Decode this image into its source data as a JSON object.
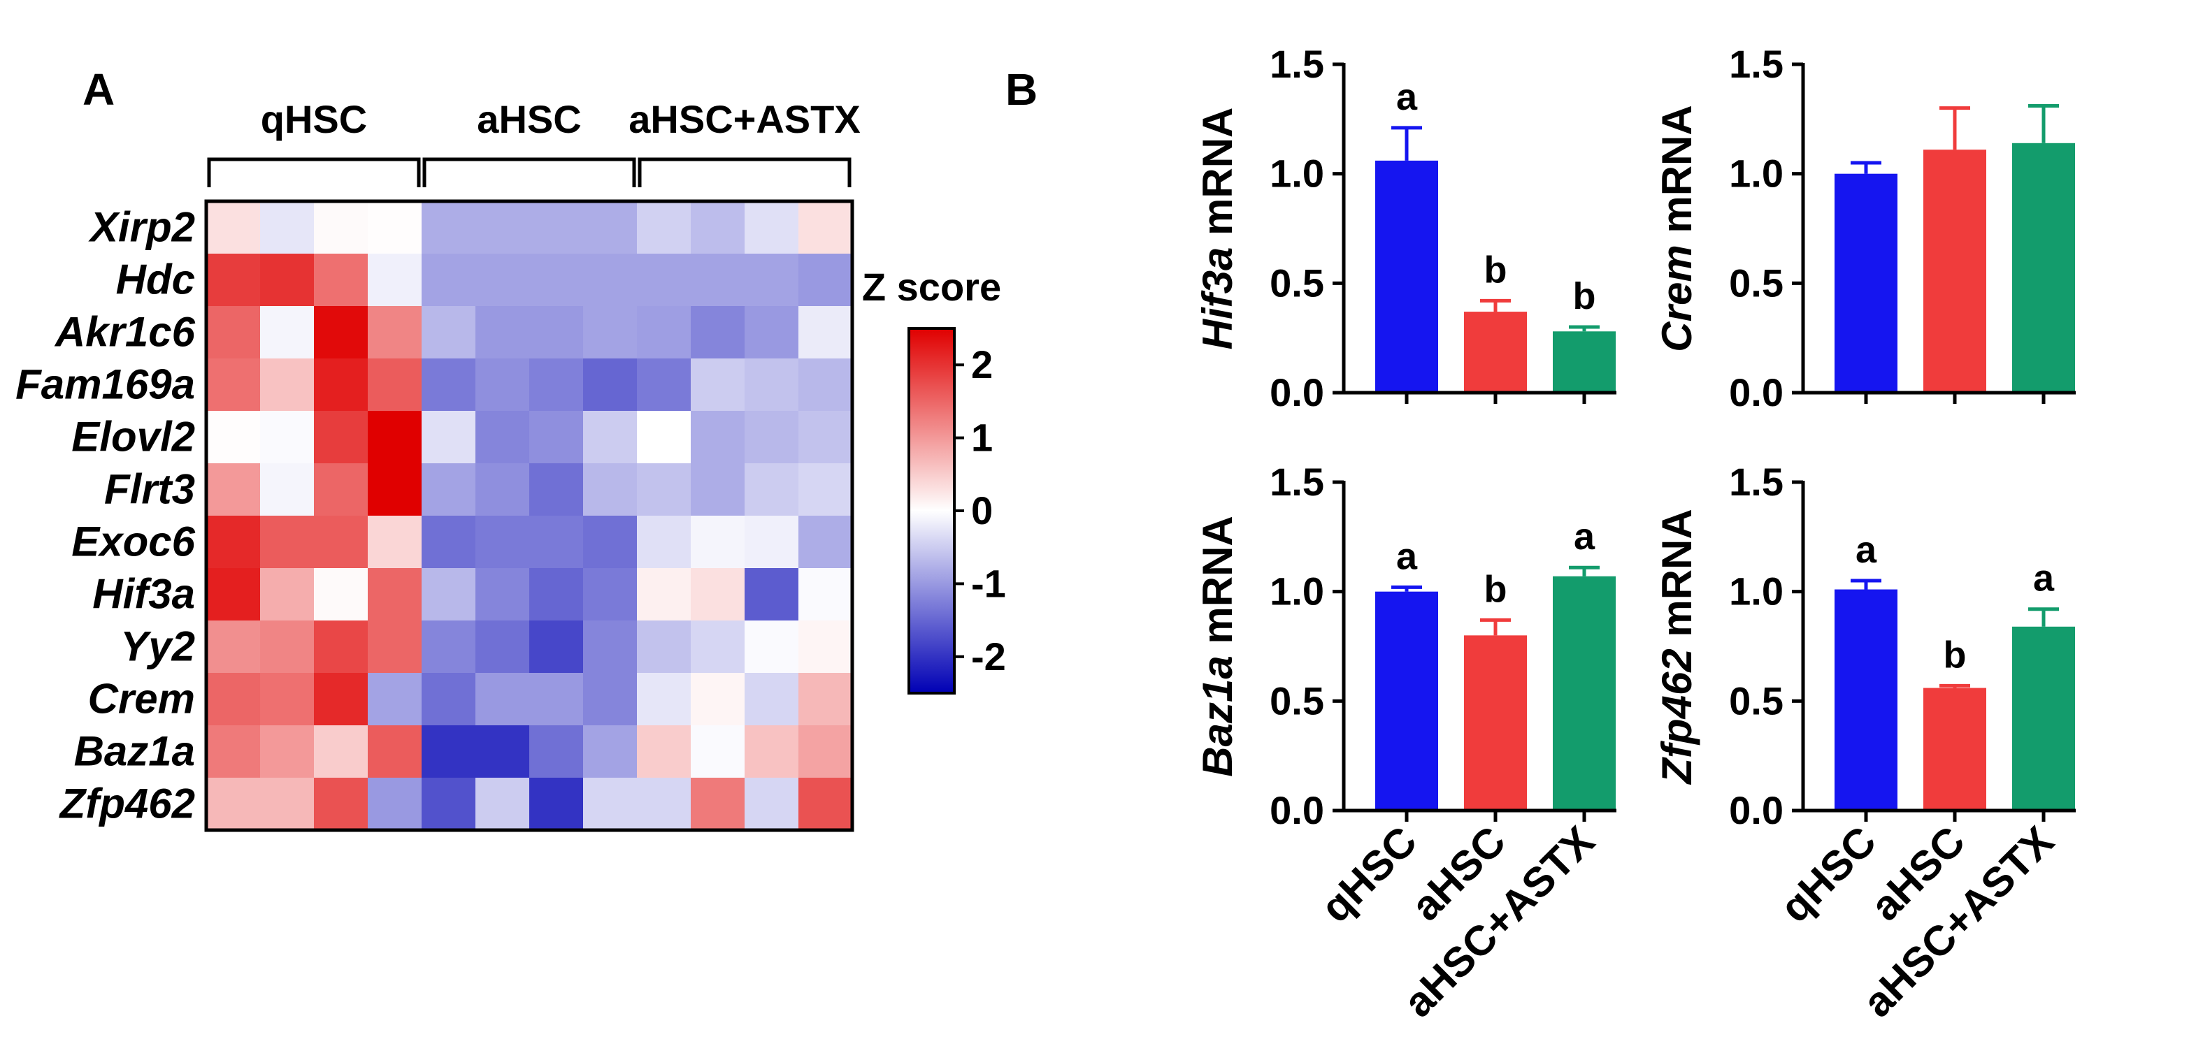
{
  "panels": {
    "a": "A",
    "b": "B"
  },
  "heatmap": {
    "groups": [
      "qHSC",
      "aHSC",
      "aHSC+ASTX"
    ],
    "genes": [
      "Xirp2",
      "Hdc",
      "Akr1c6",
      "Fam169a",
      "Elovl2",
      "Flrt3",
      "Exoc6",
      "Hif3a",
      "Yy2",
      "Crem",
      "Baz1a",
      "Zfp462"
    ],
    "z": [
      [
        0.3,
        -0.25,
        0.05,
        0.02,
        -0.8,
        -0.8,
        -0.8,
        -0.8,
        -0.45,
        -0.65,
        -0.3,
        0.3
      ],
      [
        1.9,
        2.0,
        1.4,
        -0.15,
        -0.9,
        -0.9,
        -0.9,
        -0.9,
        -0.9,
        -0.9,
        -0.9,
        -1.0
      ],
      [
        1.5,
        -0.1,
        2.4,
        1.2,
        -0.7,
        -1.0,
        -1.0,
        -0.9,
        -0.95,
        -1.2,
        -1.0,
        -0.2
      ],
      [
        1.4,
        0.6,
        2.2,
        1.6,
        -1.3,
        -1.1,
        -1.25,
        -1.5,
        -1.3,
        -0.5,
        -0.6,
        -0.7
      ],
      [
        0.02,
        -0.05,
        1.9,
        2.5,
        -0.3,
        -1.2,
        -1.1,
        -0.5,
        0.0,
        -0.8,
        -0.7,
        -0.6
      ],
      [
        1.0,
        -0.1,
        1.5,
        2.5,
        -0.9,
        -1.1,
        -1.4,
        -0.7,
        -0.6,
        -0.8,
        -0.5,
        -0.4
      ],
      [
        2.1,
        1.6,
        1.6,
        0.4,
        -1.4,
        -1.3,
        -1.3,
        -1.4,
        -0.3,
        -0.1,
        -0.15,
        -0.8
      ],
      [
        2.2,
        0.8,
        0.05,
        1.5,
        -0.7,
        -1.2,
        -1.5,
        -1.3,
        0.15,
        0.3,
        -1.6,
        -0.05
      ],
      [
        1.1,
        1.2,
        1.8,
        1.5,
        -1.2,
        -1.4,
        -1.8,
        -1.2,
        -0.6,
        -0.4,
        -0.05,
        0.1
      ],
      [
        1.5,
        1.4,
        2.1,
        -0.9,
        -1.4,
        -1.0,
        -1.0,
        -1.2,
        -0.25,
        0.1,
        -0.4,
        0.7
      ],
      [
        1.3,
        1.0,
        0.5,
        1.6,
        -2.0,
        -2.0,
        -1.4,
        -0.9,
        0.5,
        -0.05,
        0.6,
        0.9
      ],
      [
        0.7,
        0.7,
        1.7,
        -1.0,
        -1.7,
        -0.5,
        -2.0,
        -0.4,
        -0.4,
        1.3,
        -0.4,
        1.7
      ]
    ],
    "colorbar": {
      "title": "Z score",
      "ticks": [
        "2",
        "1",
        "0",
        "-1",
        "-2"
      ],
      "min": -2.5,
      "max": 2.5
    },
    "colors": {
      "high": "#e00000",
      "mid": "#ffffff",
      "low": "#0000b4"
    }
  },
  "chart_data": [
    {
      "type": "bar",
      "gene": "Hif3a",
      "ylabel_suffix": " mRNA",
      "categories": [
        "qHSC",
        "aHSC",
        "aHSC+ASTX"
      ],
      "values": [
        1.06,
        0.37,
        0.28
      ],
      "errors": [
        0.15,
        0.05,
        0.02
      ],
      "letters": [
        "a",
        "b",
        "b"
      ],
      "ylim": [
        0,
        1.5
      ],
      "yticks": [
        "0.0",
        "0.5",
        "1.0",
        "1.5"
      ],
      "colors": [
        "#1515f0",
        "#f03c3c",
        "#139c6c"
      ]
    },
    {
      "type": "bar",
      "gene": "Crem",
      "ylabel_suffix": " mRNA",
      "categories": [
        "qHSC",
        "aHSC",
        "aHSC+ASTX"
      ],
      "values": [
        1.0,
        1.11,
        1.14
      ],
      "errors": [
        0.05,
        0.19,
        0.17
      ],
      "letters": [
        "",
        "",
        ""
      ],
      "ylim": [
        0,
        1.5
      ],
      "yticks": [
        "0.0",
        "0.5",
        "1.0",
        "1.5"
      ],
      "colors": [
        "#1515f0",
        "#f03c3c",
        "#139c6c"
      ]
    },
    {
      "type": "bar",
      "gene": "Baz1a",
      "ylabel_suffix": " mRNA",
      "categories": [
        "qHSC",
        "aHSC",
        "aHSC+ASTX"
      ],
      "values": [
        1.0,
        0.8,
        1.07
      ],
      "errors": [
        0.02,
        0.07,
        0.04
      ],
      "letters": [
        "a",
        "b",
        "a"
      ],
      "ylim": [
        0,
        1.5
      ],
      "yticks": [
        "0.0",
        "0.5",
        "1.0",
        "1.5"
      ],
      "colors": [
        "#1515f0",
        "#f03c3c",
        "#139c6c"
      ]
    },
    {
      "type": "bar",
      "gene": "Zfp462",
      "ylabel_suffix": " mRNA",
      "categories": [
        "qHSC",
        "aHSC",
        "aHSC+ASTX"
      ],
      "values": [
        1.01,
        0.56,
        0.84
      ],
      "errors": [
        0.04,
        0.01,
        0.08
      ],
      "letters": [
        "a",
        "b",
        "a"
      ],
      "ylim": [
        0,
        1.5
      ],
      "yticks": [
        "0.0",
        "0.5",
        "1.0",
        "1.5"
      ],
      "colors": [
        "#1515f0",
        "#f03c3c",
        "#139c6c"
      ]
    }
  ]
}
